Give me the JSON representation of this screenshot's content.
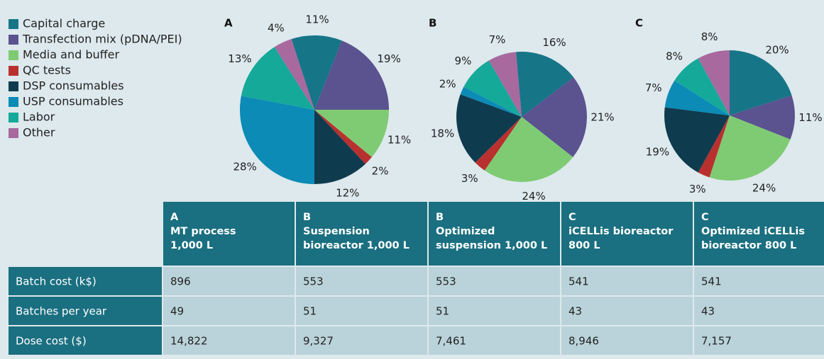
{
  "chart_data": [
    {
      "type": "pie",
      "title": "A",
      "categories": [
        "Capital charge",
        "Transfection mix (pDNA/PEI)",
        "Media and buffer",
        "QC tests",
        "DSP consumables",
        "USP consumables",
        "Labor",
        "Other"
      ],
      "colors": [
        "#177588",
        "#5b5290",
        "#7fcb74",
        "#b8312f",
        "#0f3b4f",
        "#0b8bb6",
        "#15a99a",
        "#a8699e"
      ],
      "values": [
        11,
        19,
        11,
        2,
        12,
        28,
        13,
        4
      ],
      "value_labels": [
        "11%",
        "19%",
        "11%",
        "2%",
        "12%",
        "28%",
        "13%",
        "4%"
      ]
    },
    {
      "type": "pie",
      "title": "B",
      "values": [
        16,
        21,
        24,
        3,
        18,
        2,
        9,
        7
      ],
      "value_labels": [
        "16%",
        "21%",
        "24%",
        "3%",
        "18%",
        "2%",
        "9%",
        "7%"
      ]
    },
    {
      "type": "pie",
      "title": "C",
      "values": [
        20,
        11,
        24,
        3,
        19,
        7,
        8,
        8
      ],
      "value_labels": [
        "20%",
        "11%",
        "24%",
        "3%",
        "19%",
        "7%",
        "8%",
        "8%"
      ]
    }
  ],
  "table": {
    "columns": [
      [
        "A",
        "MT process",
        "1,000 L"
      ],
      [
        "B",
        "Suspension",
        "bioreactor 1,000 L"
      ],
      [
        "B",
        "Optimized",
        "suspension 1,000 L"
      ],
      [
        "C",
        "iCELLis bioreactor",
        "800 L"
      ],
      [
        "C",
        "Optimized iCELLis",
        "bioreactor 800 L"
      ]
    ],
    "rows": [
      [
        "Batch cost (k$)",
        "896",
        "553",
        "553",
        "541",
        "541"
      ],
      [
        "Batches per year",
        "49",
        "51",
        "51",
        "43",
        "43"
      ],
      [
        "Dose cost ($)",
        "14,822",
        "9,327",
        "7,461",
        "8,946",
        "7,157"
      ]
    ]
  }
}
